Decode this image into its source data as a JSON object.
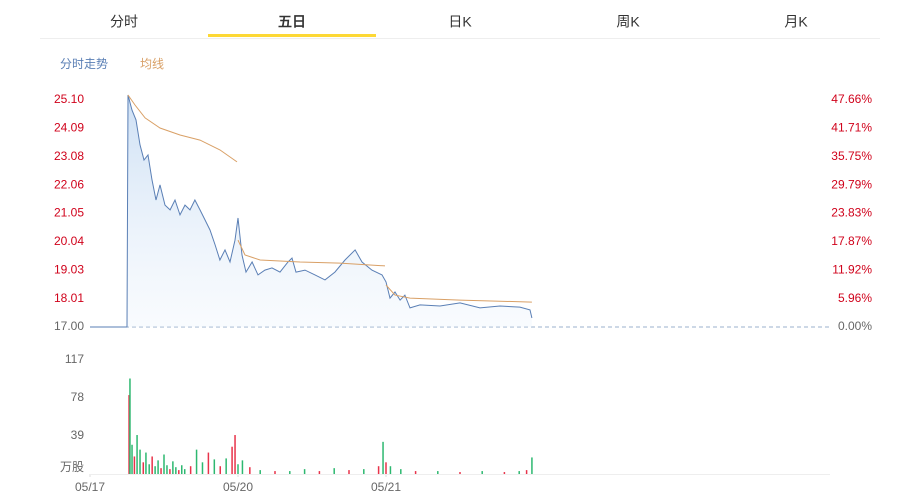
{
  "tabs": [
    "分时",
    "五日",
    "日K",
    "周K",
    "月K"
  ],
  "active_tab": 1,
  "chart_data": [
    {
      "type": "line",
      "xlim": [
        0,
        5
      ],
      "ylim": [
        17,
        25.1
      ],
      "yticks": [
        {
          "value": 17,
          "label": "17.00"
        },
        {
          "value": 18.01,
          "label": "18.01"
        },
        {
          "value": 19.03,
          "label": "19.03"
        },
        {
          "value": 20.04,
          "label": "20.04"
        },
        {
          "value": 21.05,
          "label": "21.05"
        },
        {
          "value": 22.06,
          "label": "22.06"
        },
        {
          "value": 23.08,
          "label": "23.08"
        },
        {
          "value": 24.09,
          "label": "24.09"
        },
        {
          "value": 25.1,
          "label": "25.10"
        }
      ],
      "y2lim": [
        0,
        47.66
      ],
      "y2ticks": [
        {
          "value": 0,
          "label": "0.00%"
        },
        {
          "value": 5.96,
          "label": "5.96%"
        },
        {
          "value": 11.92,
          "label": "11.92%"
        },
        {
          "value": 17.87,
          "label": "17.87%"
        },
        {
          "value": 23.83,
          "label": "23.83%"
        },
        {
          "value": 29.79,
          "label": "29.79%"
        },
        {
          "value": 35.75,
          "label": "35.75%"
        },
        {
          "value": 41.71,
          "label": "41.71%"
        },
        {
          "value": 47.66,
          "label": "47.66%"
        }
      ],
      "series": [
        {
          "name": "分时走势",
          "color": "#5a7fb5",
          "x": [
            0,
            0.25,
            0.257,
            0.284,
            0.311,
            0.338,
            0.365,
            0.392,
            0.419,
            0.446,
            0.473,
            0.507,
            0.541,
            0.574,
            0.608,
            0.642,
            0.676,
            0.709,
            0.743,
            0.777,
            0.811,
            0.845,
            0.878,
            0.912,
            0.946,
            0.98,
            1.0,
            1.027,
            1.054,
            1.095,
            1.135,
            1.182,
            1.23,
            1.284,
            1.338,
            1.365,
            1.392,
            1.453,
            1.52,
            1.588,
            1.655,
            1.723,
            1.791,
            1.838,
            1.905,
            1.973,
            2.0,
            2.027,
            2.061,
            2.095,
            2.128,
            2.162,
            2.23,
            2.365,
            2.5,
            2.635,
            2.77,
            2.905,
            2.973,
            2.986
          ],
          "values": [
            17,
            17,
            25.28,
            24.74,
            24.39,
            23.5,
            22.96,
            23.14,
            22.25,
            21.53,
            22.07,
            21.35,
            21.18,
            21.53,
            21,
            21.35,
            21.18,
            21.53,
            21.18,
            20.82,
            20.46,
            19.93,
            19.39,
            19.75,
            19.32,
            20.1,
            20.89,
            19.57,
            18.96,
            19.32,
            18.86,
            19.03,
            19.11,
            18.96,
            19.32,
            19.46,
            18.96,
            19.03,
            18.86,
            18.68,
            18.96,
            19.39,
            19.75,
            19.32,
            19.03,
            18.86,
            18.61,
            18.03,
            18.25,
            17.96,
            18.14,
            17.68,
            17.79,
            17.75,
            17.86,
            17.68,
            17.75,
            17.71,
            17.61,
            17.32
          ]
        },
        {
          "name": "均线",
          "color": "#d9a066",
          "x": [
            0.257,
            0.304,
            0.372,
            0.473,
            0.608,
            0.743,
            0.878,
            0.993,
            0.996,
            1.0,
            1.047,
            1.149,
            1.419,
            1.689,
            1.993,
            1.996,
            2.0,
            2.061,
            2.162,
            2.5,
            2.986
          ],
          "values": [
            25.28,
            24.92,
            24.46,
            24.1,
            23.85,
            23.67,
            23.32,
            22.89,
            null,
            20.1,
            19.57,
            19.39,
            19.32,
            19.28,
            19.18,
            null,
            18.5,
            18.14,
            18.03,
            17.96,
            17.89
          ]
        }
      ]
    },
    {
      "type": "bar",
      "xlim": [
        0,
        5
      ],
      "xticks": [
        {
          "value": 0,
          "label": "05/17"
        },
        {
          "value": 1,
          "label": "05/20"
        },
        {
          "value": 2,
          "label": "05/21"
        }
      ],
      "ylim": [
        0,
        117
      ],
      "yticks": [
        {
          "value": 0,
          "label": "万股"
        },
        39,
        78,
        117
      ],
      "x": [
        0.264,
        0.27,
        0.284,
        0.3,
        0.318,
        0.338,
        0.36,
        0.378,
        0.4,
        0.42,
        0.44,
        0.46,
        0.48,
        0.5,
        0.52,
        0.54,
        0.56,
        0.58,
        0.6,
        0.62,
        0.64,
        0.68,
        0.72,
        0.76,
        0.8,
        0.84,
        0.88,
        0.92,
        0.96,
        0.98,
        1.0,
        1.03,
        1.08,
        1.15,
        1.25,
        1.35,
        1.45,
        1.55,
        1.65,
        1.75,
        1.85,
        1.95,
        1.98,
        2.0,
        2.03,
        2.1,
        2.2,
        2.35,
        2.5,
        2.65,
        2.8,
        2.9,
        2.95,
        2.986
      ],
      "values": [
        81,
        98,
        30,
        18,
        40,
        25,
        12,
        22,
        10,
        18,
        8,
        14,
        6,
        20,
        9,
        5,
        13,
        7,
        4,
        9,
        5,
        8,
        25,
        12,
        22,
        15,
        8,
        16,
        28,
        40,
        10,
        14,
        7,
        4,
        3,
        3,
        5,
        3,
        6,
        4,
        5,
        8,
        33,
        12,
        8,
        5,
        3,
        3,
        2,
        3,
        2,
        3,
        4,
        17
      ],
      "colors": [
        "#e8334a",
        "#2db870",
        "#2db870",
        "#e8334a",
        "#2db870",
        "#2db870",
        "#e8334a",
        "#2db870",
        "#2db870",
        "#e8334a",
        "#2db870",
        "#2db870",
        "#e8334a",
        "#2db870",
        "#2db870",
        "#e8334a",
        "#2db870",
        "#2db870",
        "#e8334a",
        "#2db870",
        "#2db870",
        "#e8334a",
        "#2db870",
        "#2db870",
        "#e8334a",
        "#2db870",
        "#e8334a",
        "#2db870",
        "#e8334a",
        "#e8334a",
        "#2db870",
        "#2db870",
        "#e8334a",
        "#2db870",
        "#e8334a",
        "#2db870",
        "#2db870",
        "#e8334a",
        "#2db870",
        "#e8334a",
        "#2db870",
        "#e8334a",
        "#2db870",
        "#e8334a",
        "#2db870",
        "#2db870",
        "#e8334a",
        "#2db870",
        "#e8334a",
        "#2db870",
        "#e8334a",
        "#2db870",
        "#e8334a",
        "#2db870"
      ]
    }
  ]
}
